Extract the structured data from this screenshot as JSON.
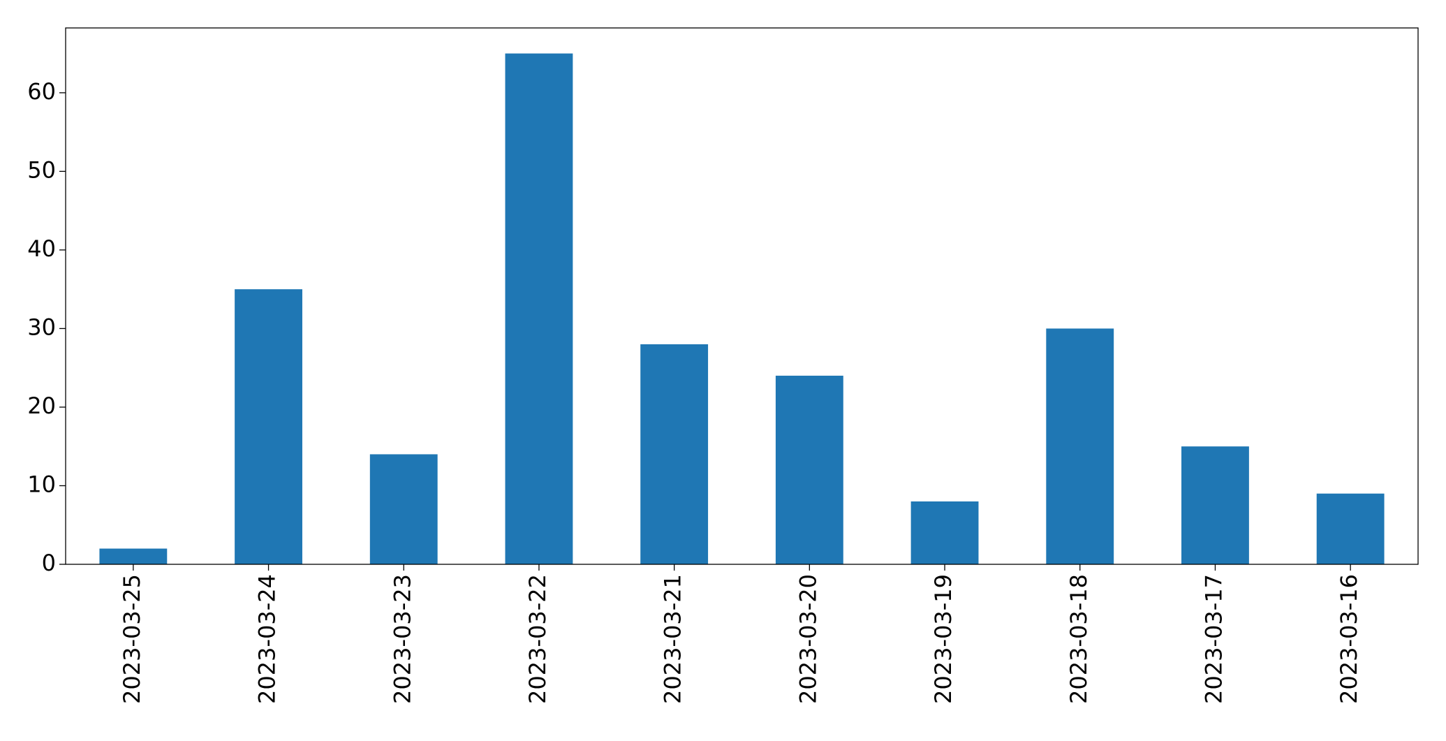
{
  "chart_data": {
    "type": "bar",
    "categories": [
      "2023-03-25",
      "2023-03-24",
      "2023-03-23",
      "2023-03-22",
      "2023-03-21",
      "2023-03-20",
      "2023-03-19",
      "2023-03-18",
      "2023-03-17",
      "2023-03-16"
    ],
    "values": [
      2,
      35,
      14,
      65,
      28,
      24,
      8,
      30,
      15,
      9
    ],
    "color": "#1f77b4",
    "ylim": [
      0,
      68.25
    ],
    "yticks": [
      0,
      10,
      20,
      30,
      40,
      50,
      60
    ],
    "grid": false
  }
}
